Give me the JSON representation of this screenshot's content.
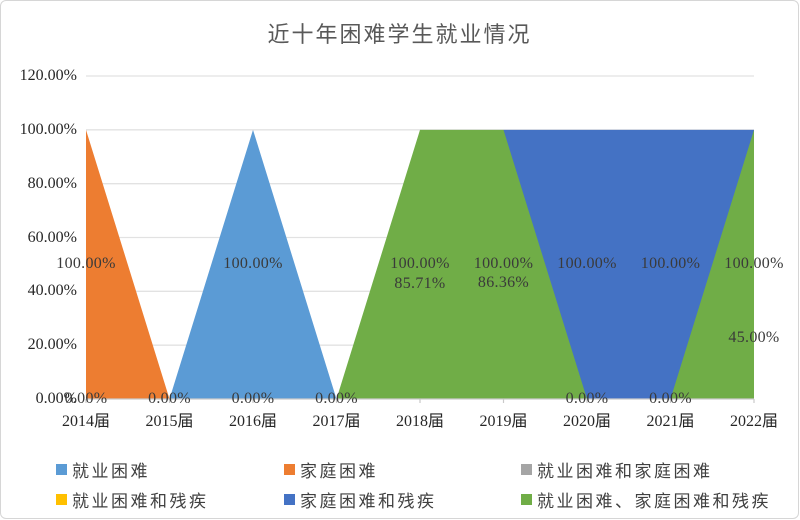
{
  "title": "近十年困难学生就业情况",
  "chart_data": {
    "type": "area",
    "title": "近十年困难学生就业情况",
    "categories": [
      "2014届",
      "2015届",
      "2016届",
      "2017届",
      "2018届",
      "2019届",
      "2020届",
      "2021届",
      "2022届"
    ],
    "y_axis": {
      "min": 0,
      "max": 120,
      "step": 20,
      "format": "percent",
      "tick_labels": [
        "120.00%",
        "100.00%",
        "80.00%",
        "60.00%",
        "40.00%",
        "20.00%",
        "0.00%"
      ],
      "tick_values": [
        120,
        100,
        80,
        60,
        40,
        20,
        0
      ]
    },
    "grid": "horizontal",
    "legend_position": "bottom",
    "series": [
      {
        "name": "就业困难",
        "color": "#5B9BD5",
        "values": [
          0,
          0,
          100,
          0,
          0,
          0,
          0,
          0,
          0
        ]
      },
      {
        "name": "家庭困难",
        "color": "#ED7D31",
        "values": [
          100,
          0,
          0,
          0,
          0,
          0,
          0,
          0,
          0
        ]
      },
      {
        "name": "就业困难和家庭困难",
        "color": "#A5A5A5",
        "values": [
          0,
          0,
          0,
          0,
          85.71,
          86.36,
          0,
          0,
          0
        ]
      },
      {
        "name": "就业困难和残疾",
        "color": "#FFC000",
        "values": [
          0,
          0,
          0,
          0,
          0,
          0,
          0,
          0,
          45
        ]
      },
      {
        "name": "家庭困难和残疾",
        "color": "#4472C4",
        "values": [
          0,
          0,
          0,
          0,
          0,
          100,
          100,
          100,
          100
        ]
      },
      {
        "name": "就业困难、家庭困难和残疾",
        "color": "#70AD47",
        "values": [
          0,
          0,
          0,
          0,
          100,
          100,
          0,
          0,
          100
        ]
      }
    ],
    "data_labels": [
      {
        "category_index": 0,
        "value": 100,
        "text": "100.00%"
      },
      {
        "category_index": 0,
        "value": 0,
        "text": "0.00%"
      },
      {
        "category_index": 1,
        "value": 0,
        "text": "0.00%"
      },
      {
        "category_index": 2,
        "value": 100,
        "text": "100.00%"
      },
      {
        "category_index": 2,
        "value": 0,
        "text": "0.00%"
      },
      {
        "category_index": 3,
        "value": 0,
        "text": "0.00%"
      },
      {
        "category_index": 4,
        "value": 100,
        "text": "100.00%"
      },
      {
        "category_index": 4,
        "value": 85.71,
        "text": "85.71%"
      },
      {
        "category_index": 5,
        "value": 100,
        "text": "100.00%"
      },
      {
        "category_index": 5,
        "value": 86.36,
        "text": "86.36%"
      },
      {
        "category_index": 6,
        "value": 100,
        "text": "100.00%"
      },
      {
        "category_index": 6,
        "value": 0,
        "text": "0.00%"
      },
      {
        "category_index": 7,
        "value": 100,
        "text": "100.00%"
      },
      {
        "category_index": 7,
        "value": 0,
        "text": "0.00%"
      },
      {
        "category_index": 8,
        "value": 100,
        "text": "100.00%"
      },
      {
        "category_index": 8,
        "value": 45,
        "text": "45.00%"
      }
    ],
    "colors": {
      "gridline": "#E2E2E2",
      "axis_line": "#C9C9C9",
      "title_text": "#595959",
      "axis_text": "#262626",
      "label_text": "#3a3a3a"
    }
  }
}
